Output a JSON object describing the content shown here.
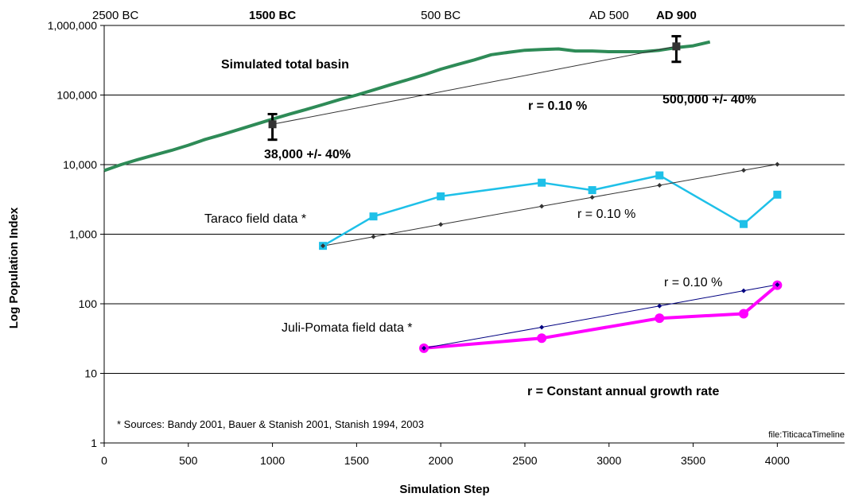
{
  "chart_data": {
    "type": "line",
    "xlabel": "Simulation Step",
    "ylabel": "Log Population Index",
    "yscale": "log",
    "xlim": [
      0,
      4400
    ],
    "ylim": [
      1,
      1000000
    ],
    "x_ticks": [
      0,
      500,
      1000,
      1500,
      2000,
      2500,
      3000,
      3500,
      4000
    ],
    "y_ticks": [
      {
        "value": 1,
        "label": "1"
      },
      {
        "value": 10,
        "label": "10"
      },
      {
        "value": 100,
        "label": "100"
      },
      {
        "value": 1000,
        "label": "1,000"
      },
      {
        "value": 10000,
        "label": "10,000"
      },
      {
        "value": 100000,
        "label": "100,000"
      },
      {
        "value": 1000000,
        "label": "1,000,000"
      }
    ],
    "grid": "horizontal",
    "top_axis_labels": [
      {
        "x": 0,
        "label": "2500 BC",
        "bold": false
      },
      {
        "x": 1000,
        "label": "1500 BC",
        "bold": true
      },
      {
        "x": 2000,
        "label": "500 BC",
        "bold": false
      },
      {
        "x": 3000,
        "label": "AD 500",
        "bold": false
      },
      {
        "x": 3400,
        "label": "AD 900",
        "bold": true
      }
    ],
    "series": [
      {
        "name": "Simulated total basin",
        "color": "#2e8b57",
        "x": [
          0,
          100,
          200,
          300,
          400,
          500,
          600,
          700,
          800,
          900,
          1000,
          1100,
          1200,
          1300,
          1400,
          1500,
          1600,
          1700,
          1800,
          1900,
          2000,
          2100,
          2200,
          2300,
          2400,
          2500,
          2600,
          2700,
          2800,
          2900,
          3000,
          3100,
          3200,
          3300,
          3400,
          3500,
          3600
        ],
        "values": [
          8200,
          10000,
          11800,
          13800,
          16000,
          19000,
          23000,
          27000,
          32000,
          38000,
          45000,
          53000,
          62000,
          73000,
          86000,
          100000,
          118000,
          140000,
          165000,
          195000,
          235000,
          275000,
          320000,
          380000,
          410000,
          440000,
          450000,
          460000,
          430000,
          430000,
          420000,
          420000,
          420000,
          440000,
          480000,
          510000,
          580000
        ]
      },
      {
        "name": "Taraco field data *",
        "color": "#1ec0e8",
        "x": [
          1300,
          1600,
          2000,
          2600,
          2900,
          3300,
          3800,
          4000
        ],
        "values": [
          680,
          1800,
          3500,
          5500,
          4300,
          7000,
          1400,
          3700
        ]
      },
      {
        "name": "Juli-Pomata field data *",
        "color": "#ff00ff",
        "x": [
          1900,
          2600,
          3300,
          3800,
          4000
        ],
        "values": [
          23,
          32,
          62,
          72,
          185
        ]
      },
      {
        "name": "",
        "color": "#333333",
        "x": [
          1000,
          3400
        ],
        "values": [
          38000,
          500000
        ]
      },
      {
        "name": "",
        "color": "#333333",
        "x": [
          1300,
          1600,
          2000,
          2600,
          2900,
          3300,
          3800,
          4000
        ],
        "values": [
          680,
          920,
          1380,
          2520,
          3390,
          5040,
          8300,
          10100
        ]
      },
      {
        "name": "",
        "color": "#000080",
        "x": [
          1900,
          2600,
          3300,
          3800,
          4000
        ],
        "values": [
          23,
          46,
          93,
          154,
          188
        ]
      }
    ],
    "error_bars": [
      {
        "x": 1000,
        "value": 38000,
        "low": 22800,
        "high": 53200
      },
      {
        "x": 3400,
        "value": 500000,
        "low": 300000,
        "high": 700000
      }
    ],
    "annotations": {
      "basin": "Simulated total basin",
      "r_basin": "r = 0.10 %",
      "est_1500": "38,000 +/- 40%",
      "est_900": "500,000 +/- 40%",
      "taraco": "Taraco field data *",
      "r_taraco": "r = 0.10 %",
      "r_juli": "r = 0.10 %",
      "juli": "Juli-Pomata field data *",
      "r_def": "r = Constant annual growth rate",
      "sources": "* Sources: Bandy 2001, Bauer & Stanish 2001, Stanish 1994, 2003",
      "file": "file:TiticacaTimeline"
    }
  }
}
